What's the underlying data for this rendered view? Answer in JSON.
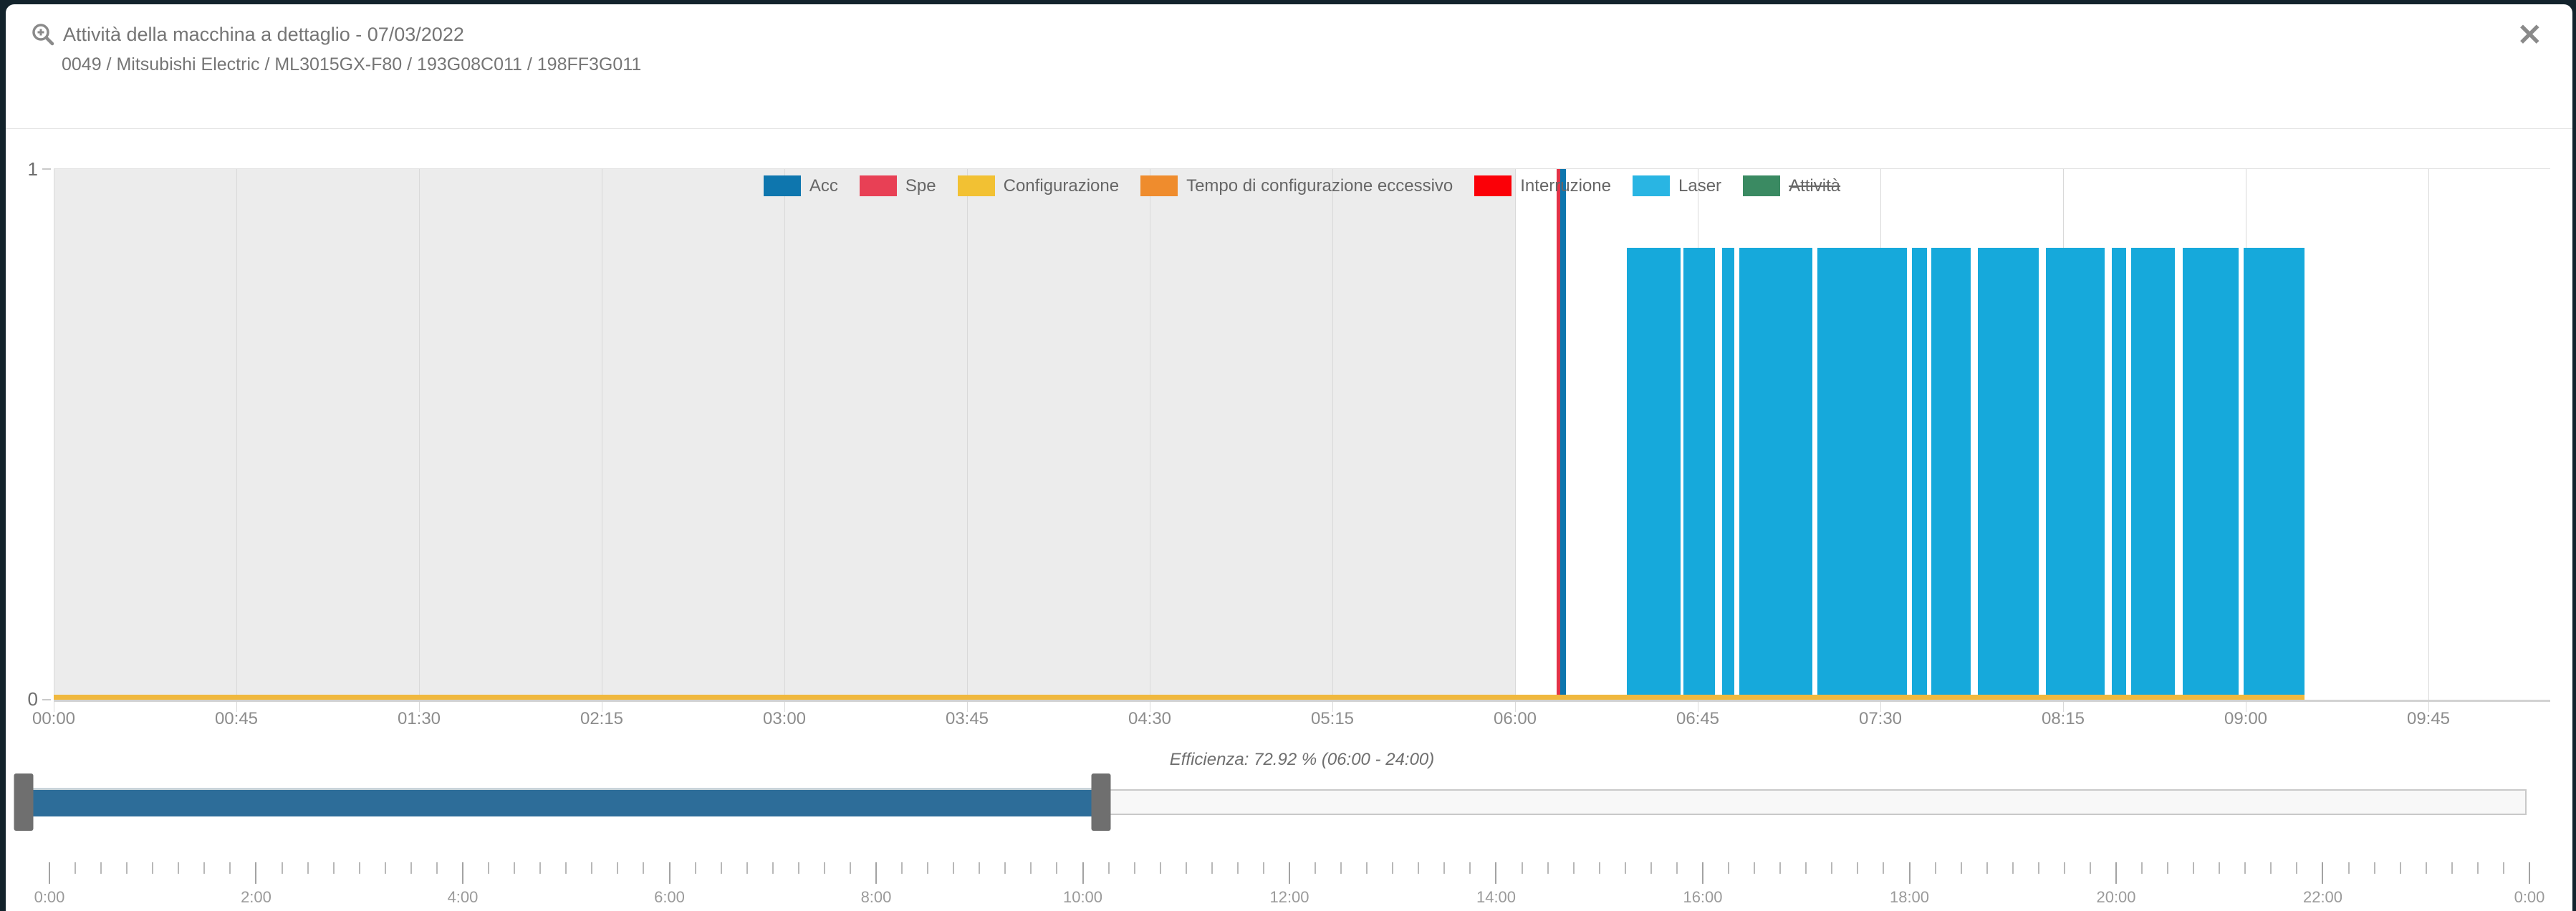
{
  "modal": {
    "title": "Attività della macchina a dettaglio - 07/03/2022",
    "subtitle": "0049 / Mitsubishi Electric / ML3015GX-F80 / 193G08C011 / 198FF3G011",
    "close_glyph": "✕"
  },
  "chart_data": {
    "type": "bar",
    "title": "Attività della macchina a dettaglio - 07/03/2022",
    "axis_hours_total": 10.25,
    "ylim": [
      0,
      1
    ],
    "y_top_label": "1",
    "y_bottom_label": "0",
    "x_tick_hours": [
      0,
      0.75,
      1.5,
      2.25,
      3,
      3.75,
      4.5,
      5.25,
      6,
      6.75,
      7.5,
      8.25,
      9,
      9.75
    ],
    "x_tick_labels": [
      "00:00",
      "00:45",
      "01:30",
      "02:15",
      "03:00",
      "03:45",
      "04:30",
      "05:15",
      "06:00",
      "06:45",
      "07:30",
      "08:15",
      "09:00",
      "09:45"
    ],
    "shaded_region": {
      "start": 0,
      "end": 6,
      "color": "#ececec"
    },
    "legend": [
      {
        "label": "Acc",
        "color": "#0e76ae",
        "disabled": false
      },
      {
        "label": "Spe",
        "color": "#e84055",
        "disabled": false
      },
      {
        "label": "Configurazione",
        "color": "#f2c133",
        "disabled": false
      },
      {
        "label": "Tempo di configurazione eccessivo",
        "color": "#ef8c2d",
        "disabled": false
      },
      {
        "label": "Interruzione",
        "color": "#fb0007",
        "disabled": false
      },
      {
        "label": "Laser",
        "color": "#29b5e3",
        "disabled": false
      },
      {
        "label": "Attività",
        "color": "#3a8a62",
        "disabled": true
      }
    ],
    "series": [
      {
        "name": "Configurazione",
        "color": "#f0b83e",
        "segments": [
          {
            "start": 0,
            "end": 9.24,
            "value": 0.011
          }
        ]
      },
      {
        "name": "Laser",
        "color": "#16a9db",
        "segments": [
          {
            "start": 6.46,
            "end": 6.68,
            "value": 0.85
          },
          {
            "start": 6.69,
            "end": 6.82,
            "value": 0.85
          },
          {
            "start": 6.85,
            "end": 6.9,
            "value": 0.85
          },
          {
            "start": 6.92,
            "end": 7.22,
            "value": 0.85
          },
          {
            "start": 7.24,
            "end": 7.61,
            "value": 0.85
          },
          {
            "start": 7.63,
            "end": 7.69,
            "value": 0.85
          },
          {
            "start": 7.71,
            "end": 7.87,
            "value": 0.85
          },
          {
            "start": 7.9,
            "end": 8.15,
            "value": 0.85
          },
          {
            "start": 8.18,
            "end": 8.42,
            "value": 0.85
          },
          {
            "start": 8.45,
            "end": 8.51,
            "value": 0.85
          },
          {
            "start": 8.53,
            "end": 8.71,
            "value": 0.85
          },
          {
            "start": 8.74,
            "end": 8.97,
            "value": 0.85
          },
          {
            "start": 8.99,
            "end": 9.24,
            "value": 0.85
          }
        ]
      },
      {
        "name": "Interruzione",
        "color": "#e23348",
        "segments": [
          {
            "start": 6.17,
            "end": 6.185,
            "value": 1
          }
        ]
      },
      {
        "name": "Acc",
        "color": "#0e76ae",
        "segments": [
          {
            "start": 6.185,
            "end": 6.21,
            "value": 1
          }
        ]
      }
    ],
    "caption": "Efficienza: 72.92 % (06:00 - 24:00)"
  },
  "slider": {
    "total_hours": 24,
    "range_start_hours": 0,
    "range_end_hours": 10.33,
    "minor_tick_hours": 0.25,
    "major_tick_hours": 2,
    "tick_labels": [
      "0:00",
      "2:00",
      "4:00",
      "6:00",
      "8:00",
      "10:00",
      "12:00",
      "14:00",
      "16:00",
      "18:00",
      "20:00",
      "22:00",
      "0:00"
    ]
  }
}
